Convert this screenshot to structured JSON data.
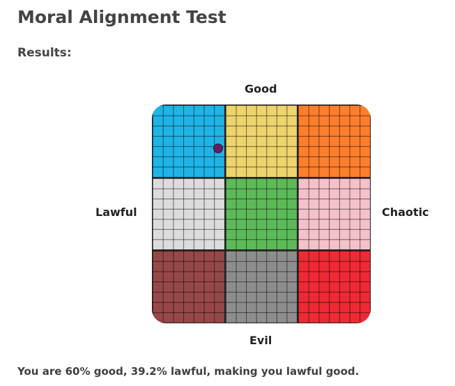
{
  "title": "Moral Alignment Test",
  "results_label": "Results:",
  "axes": {
    "top": "Good",
    "bottom": "Evil",
    "left": "Lawful",
    "right": "Chaotic"
  },
  "cells": [
    {
      "name": "lawful-good",
      "color": "#1fb4e6"
    },
    {
      "name": "neutral-good",
      "color": "#eed46c"
    },
    {
      "name": "chaotic-good",
      "color": "#fd7f2c"
    },
    {
      "name": "lawful-neutral",
      "color": "#dcdcdc"
    },
    {
      "name": "true-neutral",
      "color": "#5dba59"
    },
    {
      "name": "chaotic-neutral",
      "color": "#f5c1cb"
    },
    {
      "name": "lawful-evil",
      "color": "#964848"
    },
    {
      "name": "neutral-evil",
      "color": "#8d8d8d"
    },
    {
      "name": "chaotic-evil",
      "color": "#ee2a35"
    }
  ],
  "marker": {
    "good_percent": 60,
    "lawful_percent": 39.2,
    "color": "#6b1a6b"
  },
  "result_text": "You are 60% good, 39.2% lawful, making you lawful good."
}
